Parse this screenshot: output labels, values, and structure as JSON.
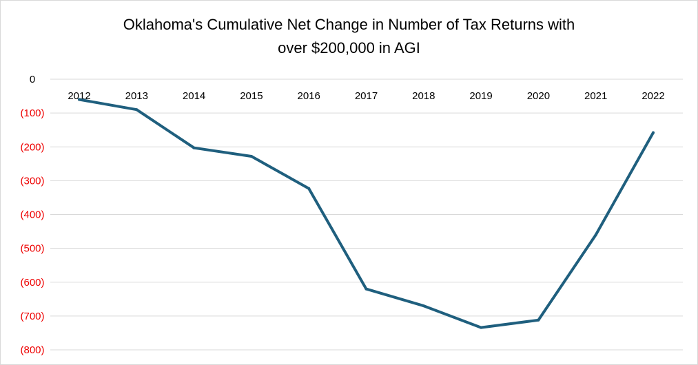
{
  "chart_data": {
    "type": "line",
    "title_lines": [
      "Oklahoma's Cumulative Net Change in Number of Tax Returns with",
      "over $200,000 in AGI"
    ],
    "xlabel": "",
    "ylabel": "",
    "categories": [
      "2012",
      "2013",
      "2014",
      "2015",
      "2016",
      "2017",
      "2018",
      "2019",
      "2020",
      "2021",
      "2022"
    ],
    "series": [
      {
        "values": [
          -60,
          -90,
          -203,
          -228,
          -323,
          -620,
          -670,
          -734,
          -712,
          -460,
          -158
        ]
      }
    ],
    "ylim": [
      -800,
      0
    ],
    "yticks": [
      0,
      -100,
      -200,
      -300,
      -400,
      -500,
      -600,
      -700,
      -800
    ],
    "ytick_labels": [
      "0",
      "(100)",
      "(200)",
      "(300)",
      "(400)",
      "(500)",
      "(600)",
      "(700)",
      "(800)"
    ],
    "grid": true,
    "line_color": "#1f5f7e",
    "negative_label_color": "#ee0000",
    "zero_label_color": "#000000",
    "gridline_color": "#d9d9d9"
  }
}
